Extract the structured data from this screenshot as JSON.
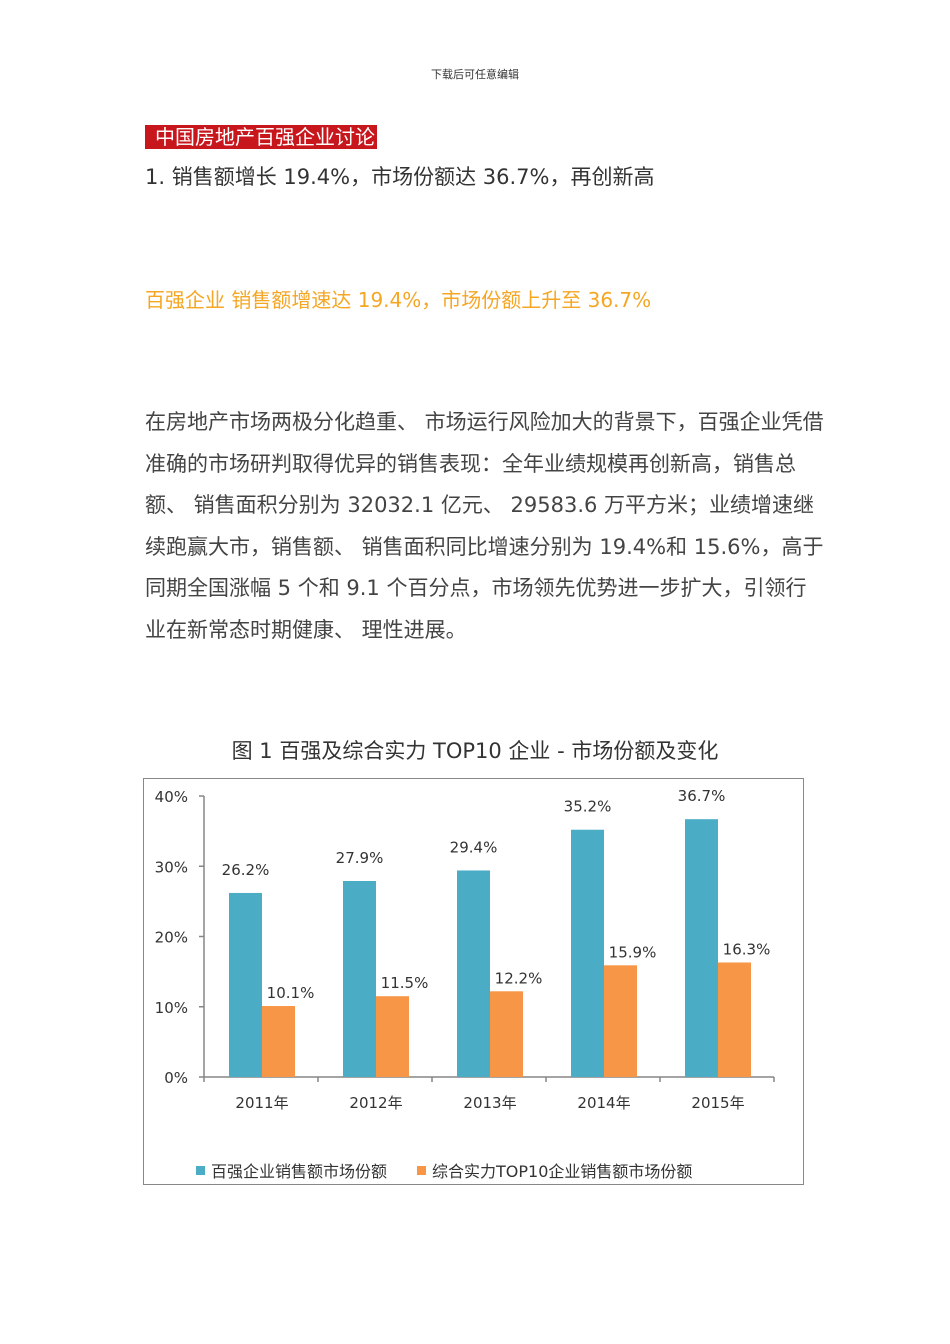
{
  "header_note": "下载后可任意编辑",
  "section_title": "中国房地产百强企业讨论",
  "heading1": "1.  销售额增长 19.4%，市场份额达 36.7%，再创新高",
  "subhead": "百强企业  销售额增速达 19.4%，市场份额上升至 36.7%",
  "paragraph": "在房地产市场两极分化趋重、 市场运行风险加大的背景下，百强企业凭借准确的市场研判取得优异的销售表现：全年业绩规模再创新高，销售总额、 销售面积分别为 32032.1 亿元、 29583.6 万平方米；业绩增速继续跑赢大市，销售额、 销售面积同比增速分别为 19.4%和 15.6%，高于同期全国涨幅 5 个和 9.1 个百分点，市场领先优势进一步扩大，引领行业在新常态时期健康、 理性进展。",
  "figure_title": "图 1  百强及综合实力 TOP10 企业  -  市场份额及变化",
  "colors": {
    "section_bg": "#c8161d",
    "subhead": "#f5a623",
    "series_blue": "#4bacc6",
    "series_orange": "#f79646",
    "axis": "#868686"
  },
  "chart_data": {
    "type": "bar",
    "title": "图 1  百强及综合实力 TOP10 企业  -  市场份额及变化",
    "categories": [
      "2011年",
      "2012年",
      "2013年",
      "2014年",
      "2015年"
    ],
    "series": [
      {
        "name": "百强企业销售额市场份额",
        "values": [
          26.2,
          27.9,
          29.4,
          35.2,
          36.7
        ],
        "labels": [
          "26.2%",
          "27.9%",
          "29.4%",
          "35.2%",
          "36.7%"
        ],
        "color": "#4bacc6"
      },
      {
        "name": "综合实力TOP10企业销售额市场份额",
        "values": [
          10.1,
          11.5,
          12.2,
          15.9,
          16.3
        ],
        "labels": [
          "10.1%",
          "11.5%",
          "12.2%",
          "15.9%",
          "16.3%"
        ],
        "color": "#f79646"
      }
    ],
    "xlabel": "",
    "ylabel": "",
    "ylim": [
      0,
      40
    ],
    "yticks": [
      "0%",
      "10%",
      "20%",
      "30%",
      "40%"
    ],
    "grid": false,
    "legend_position": "bottom"
  }
}
